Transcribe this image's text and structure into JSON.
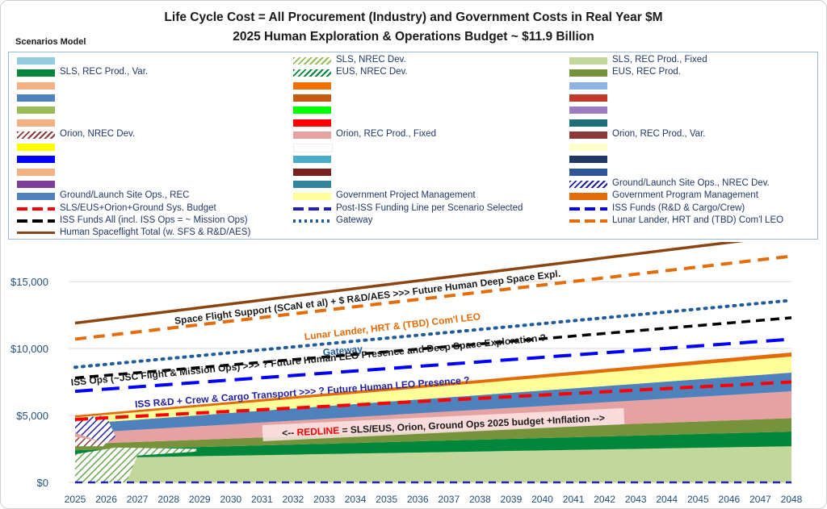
{
  "title_line1": "Life Cycle Cost = All Procurement (Industry) and Government Costs in Real Year $M",
  "title_line2": "2025 Human Exploration & Operations Budget ~ $11.9 Billion",
  "legend_heading": "Scenarios Model",
  "colors": {
    "sls_fixed": "#c4d79b",
    "sls_var": "#00873c",
    "eus_prod": "#76933c",
    "orion_fixed": "#e6a1a1",
    "ground_rec": "#4f81bd",
    "gov_project": "#ffff99",
    "gov_program": "#e36c09",
    "redline": "#ff0000",
    "iss_funds": "#0000ff",
    "post_iss": "#2020c0",
    "iss_all": "#000000",
    "gateway": "#1f5c99",
    "lunar": "#e46c0a",
    "hsf_total": "#8b4513"
  },
  "legend": {
    "col1": [
      {
        "label": "",
        "swatch": "#93cddd",
        "style": "solid"
      },
      {
        "label": "SLS, REC Prod., Var.",
        "swatch": "#00873c",
        "style": "solid"
      },
      {
        "label": "",
        "swatch": "#f4b183",
        "style": "solid"
      },
      {
        "label": "",
        "swatch": "#4f81bd",
        "style": "solid"
      },
      {
        "label": "",
        "swatch": "#9bbb59",
        "style": "solid"
      },
      {
        "label": "",
        "swatch": "#f4b183",
        "style": "solid"
      },
      {
        "label": "Orion, NREC Dev.",
        "swatch": "#8b3a3a",
        "style": "hatch"
      },
      {
        "label": "",
        "swatch": "#ffff00",
        "style": "solid"
      },
      {
        "label": "",
        "swatch": "#0000ff",
        "style": "solid"
      },
      {
        "label": "",
        "swatch": "#f4b183",
        "style": "solid"
      },
      {
        "label": "",
        "swatch": "#7f3f98",
        "style": "solid"
      },
      {
        "label": "Ground/Launch Site Ops., REC",
        "swatch": "#4f81bd",
        "style": "solid"
      },
      {
        "label": "SLS/EUS+Orion+Ground Sys. Budget",
        "swatch": "#ff0000",
        "style": "dash"
      },
      {
        "label": "ISS Funds All (incl. ISS Ops = ~  Mission Ops)",
        "swatch": "#000000",
        "style": "dash"
      },
      {
        "label": "Human Spaceflight Total (w. SFS & R&D/AES)",
        "swatch": "#8b4513",
        "style": "line"
      }
    ],
    "col2": [
      {
        "label": "SLS, NREC Dev.",
        "swatch": "#9bbb59",
        "style": "hatch"
      },
      {
        "label": "EUS, NREC Dev.",
        "swatch": "#00873c",
        "style": "hatch"
      },
      {
        "label": "",
        "swatch": "#f07000",
        "style": "solid"
      },
      {
        "label": "",
        "swatch": "#c55a11",
        "style": "solid"
      },
      {
        "label": "",
        "swatch": "#00ff00",
        "style": "solid"
      },
      {
        "label": "",
        "swatch": "#ff0000",
        "style": "solid"
      },
      {
        "label": "Orion, REC Prod., Fixed",
        "swatch": "#e6a1a1",
        "style": "solid"
      },
      {
        "label": "",
        "swatch": "#ffffff",
        "style": "solid"
      },
      {
        "label": "",
        "swatch": "#4bacc6",
        "style": "solid"
      },
      {
        "label": "",
        "swatch": "#7b2020",
        "style": "solid"
      },
      {
        "label": "",
        "swatch": "#31859c",
        "style": "solid"
      },
      {
        "label": "Government Project Management",
        "swatch": "#ffff99",
        "style": "solid"
      },
      {
        "label": "Post-ISS Funding Line per Scenario Selected",
        "swatch": "#2020c0",
        "style": "dash"
      },
      {
        "label": "Gateway",
        "swatch": "#1f5c99",
        "style": "dot"
      }
    ],
    "col3": [
      {
        "label": "SLS, REC Prod., Fixed",
        "swatch": "#c4d79b",
        "style": "solid"
      },
      {
        "label": "EUS, REC Prod.",
        "swatch": "#76933c",
        "style": "solid"
      },
      {
        "label": "",
        "swatch": "#8db3e2",
        "style": "solid"
      },
      {
        "label": "",
        "swatch": "#c0392b",
        "style": "solid"
      },
      {
        "label": "",
        "swatch": "#9e7cc1",
        "style": "solid"
      },
      {
        "label": "",
        "swatch": "#1f6f7a",
        "style": "solid"
      },
      {
        "label": "Orion, REC Prod., Var.",
        "swatch": "#8b3a3a",
        "style": "solid"
      },
      {
        "label": "",
        "swatch": "#ffffcc",
        "style": "solid"
      },
      {
        "label": "",
        "swatch": "#1f3864",
        "style": "solid"
      },
      {
        "label": "",
        "swatch": "#2e5597",
        "style": "solid"
      },
      {
        "label": "Ground/Launch Site Ops., NREC Dev.",
        "swatch": "#1f1f9f",
        "style": "hatch"
      },
      {
        "label": "Government Program Management",
        "swatch": "#e36c09",
        "style": "solid"
      },
      {
        "label": "ISS Funds (R&D & Cargo/Crew)",
        "swatch": "#0000ff",
        "style": "dash"
      },
      {
        "label": "Lunar Lander, HRT and (TBD) Com'l LEO",
        "swatch": "#e46c0a",
        "style": "dash"
      }
    ]
  },
  "chart_data": {
    "type": "area",
    "x": [
      "2025",
      "2026",
      "2027",
      "2028",
      "2029",
      "2030",
      "2031",
      "2032",
      "2033",
      "2034",
      "2035",
      "2036",
      "2037",
      "2038",
      "2039",
      "2040",
      "2041",
      "2042",
      "2043",
      "2044",
      "2045",
      "2046",
      "2047",
      "2048"
    ],
    "ylim": [
      0,
      18500
    ],
    "yticks": [
      "$0",
      "$5,000",
      "$10,000",
      "$15,000"
    ],
    "ytick_values": [
      0,
      5000,
      10000,
      15000
    ],
    "stacked_areas": [
      {
        "name": "SLS, REC Prod., Fixed",
        "start": 1800,
        "end": 2700
      },
      {
        "name": "SLS, REC Prod., Var.",
        "start": 600,
        "end": 1100
      },
      {
        "name": "EUS, REC Prod.",
        "start": 450,
        "end": 1000
      },
      {
        "name": "Orion, REC Prod., Fixed",
        "start": 800,
        "end": 2000
      },
      {
        "name": "Ground/Launch Site Ops., REC",
        "start": 700,
        "end": 1400
      },
      {
        "name": "Government Project Management",
        "start": 500,
        "end": 1200
      },
      {
        "name": "Government Program Management",
        "start": 150,
        "end": 300
      }
    ],
    "lines": [
      {
        "name": "Human Spaceflight Total",
        "start": 11900,
        "end": 18500,
        "style": "solid"
      },
      {
        "name": "Lunar Lander, HRT and (TBD) Com'l LEO",
        "start": 10700,
        "end": 16900,
        "style": "dash"
      },
      {
        "name": "Gateway",
        "start": 8600,
        "end": 13600,
        "style": "dot"
      },
      {
        "name": "ISS Funds All",
        "start": 7800,
        "end": 12300,
        "style": "dash"
      },
      {
        "name": "ISS Funds (R&D & Cargo/Crew)",
        "start": 6800,
        "end": 10700,
        "style": "dash"
      },
      {
        "name": "SLS/EUS+Orion+Ground Sys. Budget",
        "start": 4700,
        "end": 7500,
        "style": "dash"
      },
      {
        "name": "Post-ISS Funding Line per Scenario Selected",
        "start": 0,
        "end": 0,
        "style": "dash"
      }
    ],
    "annotations": {
      "sfs": "Space Flight Support (SCaN et al) + $ R&D/AES >>> Future Human Deep Space Expl.",
      "lunar": "Lunar Lander, HRT & (TBD) Com'l LEO",
      "gateway": "Gateway",
      "iss_ops": "ISS Ops (~JSC Flight & Mission Ops) >>> ? Future Human LEO Presence and Deep Space Exploration ?",
      "iss_rd": "ISS R&D + Crew & Cargo Transport >>> ? Future Human LEO Presence ?",
      "redline_bold": "REDLINE",
      "redline_pre": "<-- ",
      "redline_rest": " = SLS/EUS, Orion, Ground Ops 2025 budget +Inflation -->"
    }
  }
}
